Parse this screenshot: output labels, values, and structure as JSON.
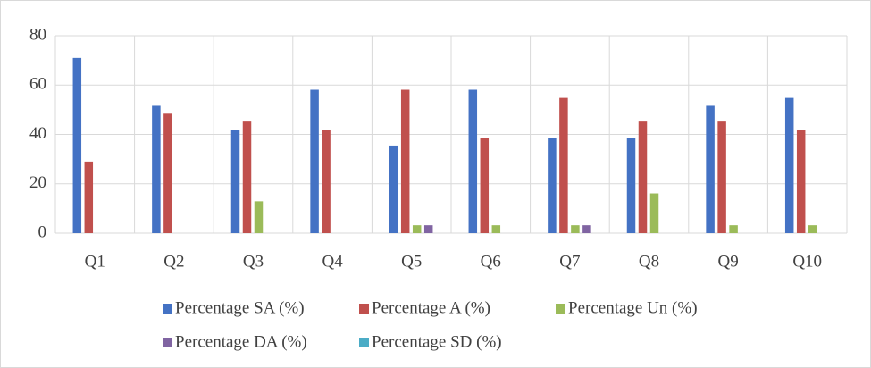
{
  "chart_data": {
    "type": "bar",
    "categories": [
      "Q1",
      "Q2",
      "Q3",
      "Q4",
      "Q5",
      "Q6",
      "Q7",
      "Q8",
      "Q9",
      "Q10"
    ],
    "series": [
      {
        "name": "Percentage SA (%)",
        "color": "#4472c4",
        "values": [
          71,
          51.6,
          41.9,
          58.1,
          35.5,
          58.1,
          38.7,
          38.7,
          51.6,
          54.8
        ]
      },
      {
        "name": "Percentage A (%)",
        "color": "#c0504d",
        "values": [
          29,
          48.4,
          45.2,
          41.9,
          58.1,
          38.7,
          54.8,
          45.2,
          45.2,
          41.9
        ]
      },
      {
        "name": "Percentage Un (%)",
        "color": "#9bbb59",
        "values": [
          0,
          0,
          12.9,
          0,
          3.2,
          3.2,
          3.2,
          16.1,
          3.2,
          3.2
        ]
      },
      {
        "name": "Percentage DA (%)",
        "color": "#8064a2",
        "values": [
          0,
          0,
          0,
          0,
          3.2,
          0,
          3.2,
          0,
          0,
          0
        ]
      },
      {
        "name": "Percentage SD (%)",
        "color": "#4bacc6",
        "values": [
          0,
          0,
          0,
          0,
          0,
          0,
          0,
          0,
          0,
          0
        ]
      }
    ],
    "ylim": [
      0,
      80
    ],
    "yticks": [
      0,
      20,
      40,
      60,
      80
    ],
    "grid": true,
    "legend": "bottom"
  }
}
